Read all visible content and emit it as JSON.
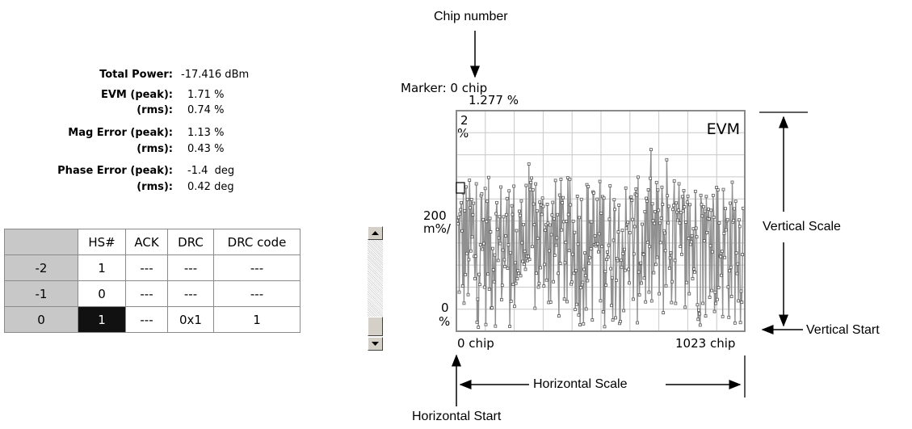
{
  "measurements": {
    "total_power": {
      "label": "Total Power:",
      "value": "-17.416 dBm"
    },
    "evm_peak": {
      "label": "EVM (peak):",
      "value": "1.71 %"
    },
    "evm_rms": {
      "label": "(rms):",
      "value": "0.74 %"
    },
    "mag_peak": {
      "label": "Mag Error (peak):",
      "value": "1.13 %"
    },
    "mag_rms": {
      "label": "(rms):",
      "value": "0.43 %"
    },
    "phase_peak": {
      "label": "Phase Error (peak):",
      "value": "-1.4  deg"
    },
    "phase_rms": {
      "label": "(rms):",
      "value": "0.42 deg"
    }
  },
  "table": {
    "headers": [
      "HS#",
      "ACK",
      "DRC",
      "DRC code"
    ],
    "rows": [
      {
        "index": "-2",
        "cells": [
          "1",
          "---",
          "---",
          "---"
        ]
      },
      {
        "index": "-1",
        "cells": [
          "0",
          "---",
          "---",
          "---"
        ]
      },
      {
        "index": "0",
        "cells": [
          "1",
          "---",
          "0x1",
          "1"
        ]
      }
    ]
  },
  "plot": {
    "marker_label": "Marker: 0 chip",
    "marker_value": "1.277 %",
    "trace_name": "EVM",
    "y_top_value": "2",
    "y_top_unit": "%",
    "y_scale_value": "200",
    "y_scale_unit": "m%/",
    "y_bottom_value": "0",
    "y_bottom_unit": "%",
    "x_start": "0 chip",
    "x_end": "1023 chip",
    "trace_color": "#909090",
    "grid_color": "#c8c8c8"
  },
  "annotations": {
    "chip_number": "Chip number",
    "vertical_scale": "Vertical Scale",
    "vertical_start": "Vertical Start",
    "horizontal_scale": "Horizontal Scale",
    "horizontal_start": "Horizontal Start"
  }
}
